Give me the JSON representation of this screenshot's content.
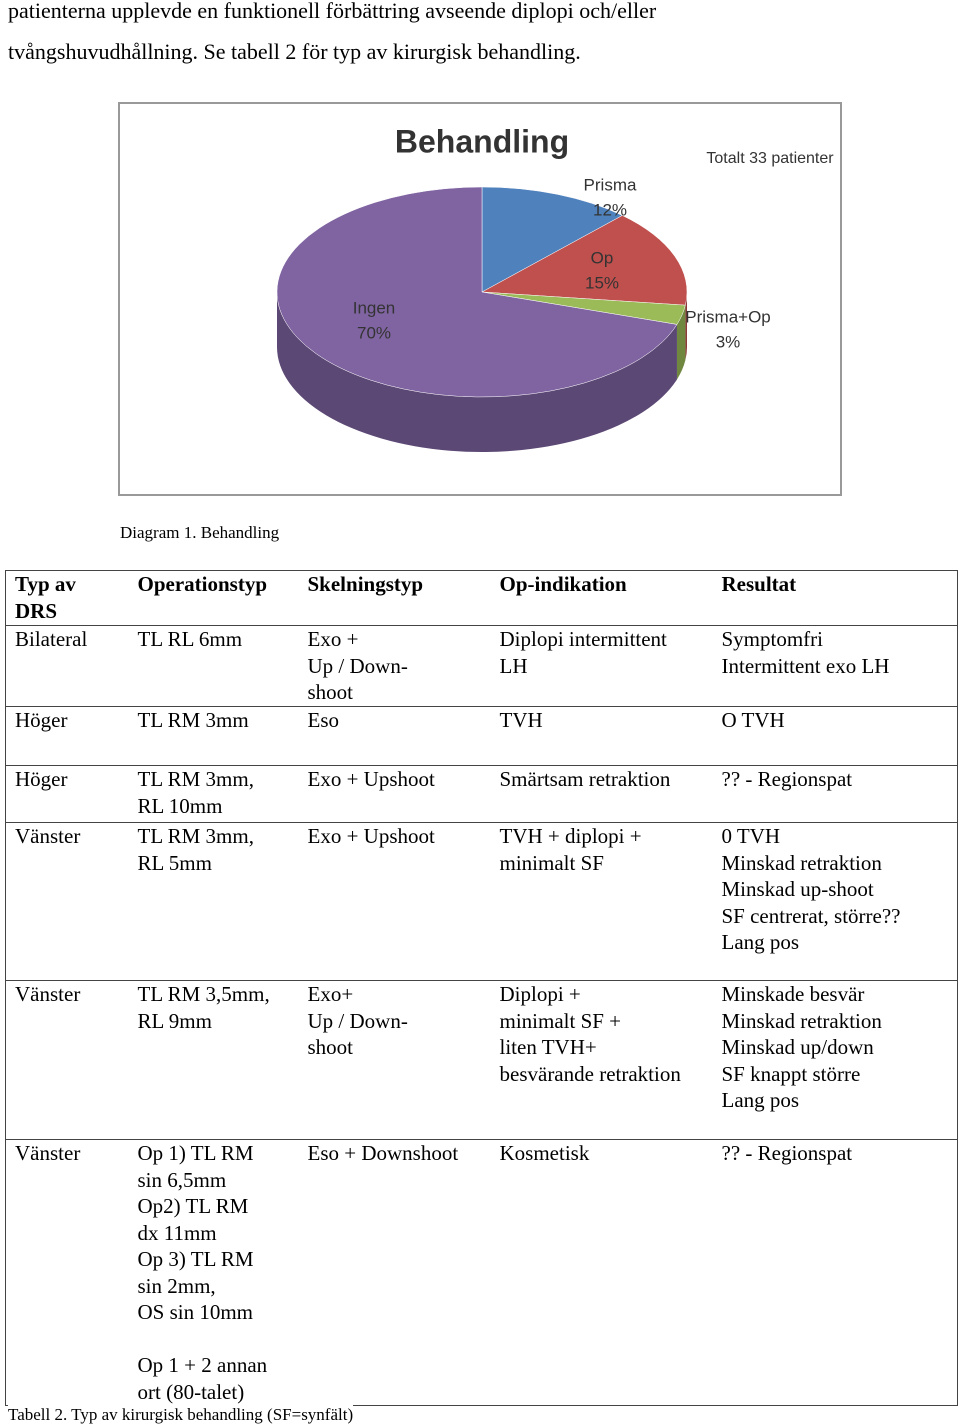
{
  "text": {
    "lines": [
      "patienterna upplevde en funktionell förbättring avseende diplopi och/eller",
      "tvångshuvudhållning. Se tabell 2 för typ av kirurgisk behandling."
    ]
  },
  "chart_data": {
    "type": "pie",
    "title": "Behandling",
    "annotation": "Totalt 33 patienter",
    "categories": [
      "Prisma",
      "Op",
      "Prisma+Op",
      "Ingen"
    ],
    "values": [
      12,
      15,
      3,
      70
    ],
    "value_labels": [
      "12%",
      "15%",
      "3%",
      "70%"
    ],
    "colors": [
      "#4f81bd",
      "#c0504d",
      "#9bbb59",
      "#8064a2"
    ]
  },
  "chart_caption": "Diagram 1. Behandling",
  "table": {
    "header": [
      "Typ av\nDRS",
      "Operationstyp",
      "Skelningstyp",
      "Op-indikation",
      "Resultat"
    ],
    "rows": [
      [
        "Bilateral",
        "TL RL 6mm",
        "Exo +\nUp / Down-\nshoot",
        "Diplopi intermittent\nLH",
        "Symptomfri\nIntermittent exo LH"
      ],
      [
        "Höger",
        "TL RM 3mm",
        "Eso",
        "TVH",
        "O TVH"
      ],
      [
        "Höger",
        "TL RM 3mm,\nRL 10mm",
        "Exo + Upshoot",
        "Smärtsam retraktion",
        "?? - Regionspat"
      ],
      [
        "Vänster",
        "TL RM 3mm,\nRL 5mm",
        "Exo + Upshoot",
        "TVH + diplopi +\nminimalt SF",
        "0 TVH\nMinskad retraktion\nMinskad up-shoot\nSF centrerat, större??\nLang pos"
      ],
      [
        "Vänster",
        "TL RM 3,5mm,\nRL 9mm",
        "Exo+\nUp / Down-\nshoot",
        "Diplopi +\nminimalt SF +\nliten TVH+\nbesvärande retraktion",
        "Minskade besvär\nMinskad retraktion\nMinskad up/down\nSF knappt större\nLang pos"
      ],
      [
        "Vänster",
        "Op 1)  TL RM\nsin 6,5mm\nOp2)  TL RM\ndx 11mm\nOp 3) TL  RM\nsin 2mm,\nOS sin 10mm\n\nOp 1 + 2 annan\nort (80-talet)",
        "Eso + Downshoot",
        "Kosmetisk",
        " ?? - Regionspat"
      ]
    ]
  },
  "table_caption": "Tabell 2. Typ av kirurgisk behandling (SF=synfält)"
}
